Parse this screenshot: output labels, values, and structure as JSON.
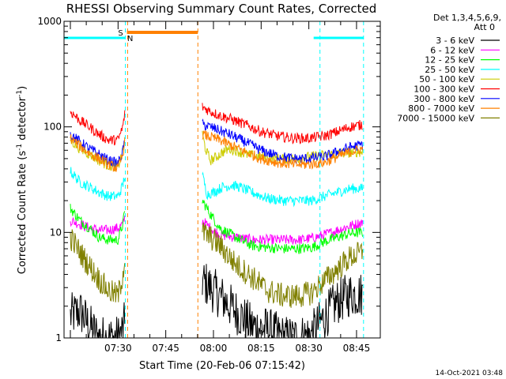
{
  "chart_data": {
    "type": "line",
    "title": "RHESSI Observing Summary Count Rates, Corrected",
    "xlabel": "Start Time (20-Feb-06 07:15:42)",
    "ylabel_main": "Corrected Count Rate (s",
    "ylabel_sup1": "-1",
    "ylabel_mid": " detector",
    "ylabel_sup2": "-1",
    "ylabel_end": ")",
    "yscale": "log",
    "ylim": [
      1,
      1000
    ],
    "xlim_min": [
      0,
      140
    ],
    "x_ticks": [
      {
        "m": 15,
        "label": "07:30"
      },
      {
        "m": 30,
        "label": "07:45"
      },
      {
        "m": 45,
        "label": "08:00"
      },
      {
        "m": 60,
        "label": "08:15"
      },
      {
        "m": 75,
        "label": "08:30"
      },
      {
        "m": 90,
        "label": "08:45"
      }
    ],
    "y_ticks": [
      {
        "v": 1,
        "label": "1"
      },
      {
        "v": 10,
        "label": "10"
      },
      {
        "v": 100,
        "label": "100"
      },
      {
        "v": 1000,
        "label": "1000"
      }
    ],
    "legend_header": [
      "Det 1,3,4,5,6,9,",
      "Att 0"
    ],
    "legend_position": "right",
    "footer_date": "14-Oct-2021 03:48",
    "flags": {
      "saa_label": "S",
      "night_label": "N",
      "saa_bar": {
        "start": 17.3,
        "end": 40.1,
        "color": "#ff8000"
      },
      "night_bars": [
        {
          "start": 0,
          "end": 17.3
        },
        {
          "start": 78.5,
          "end": 92.2
        }
      ],
      "night_color": "#00ffff"
    },
    "vlines": [
      {
        "m": 17.3,
        "color": "#00ffff"
      },
      {
        "m": 18.0,
        "color": "#ff8000"
      },
      {
        "m": 40.1,
        "color": "#ff8000"
      },
      {
        "m": 78.5,
        "color": "#00ffff"
      },
      {
        "m": 92.2,
        "color": "#00ffff"
      }
    ],
    "series": [
      {
        "name": "3 - 6 keV",
        "color": "#000000",
        "seg1": [
          [
            0,
            1.6
          ],
          [
            3,
            1.8
          ],
          [
            6,
            1.3
          ],
          [
            9,
            1.0
          ],
          [
            12,
            1.0
          ],
          [
            15,
            1.0
          ],
          [
            16.5,
            1.2
          ],
          [
            17.2,
            1.4
          ]
        ],
        "seg2": [
          [
            41.5,
            3.5
          ],
          [
            44,
            3.0
          ],
          [
            47,
            2.5
          ],
          [
            52,
            1.8
          ],
          [
            57,
            1.3
          ],
          [
            62,
            1.2
          ],
          [
            67,
            1.0
          ],
          [
            72,
            1.0
          ],
          [
            76,
            1.1
          ],
          [
            80,
            1.6
          ],
          [
            84,
            2.2
          ],
          [
            88,
            2.6
          ],
          [
            92,
            2.6
          ]
        ]
      },
      {
        "name": "6 - 12 keV",
        "color": "#ff00ff",
        "seg1": [
          [
            0,
            13
          ],
          [
            3,
            12
          ],
          [
            6,
            11
          ],
          [
            9,
            10.5
          ],
          [
            12,
            10.5
          ],
          [
            15,
            11
          ],
          [
            16.5,
            12
          ],
          [
            17.2,
            14
          ]
        ],
        "seg2": [
          [
            41.5,
            13
          ],
          [
            44,
            11
          ],
          [
            47,
            9.5
          ],
          [
            52,
            9
          ],
          [
            57,
            8.5
          ],
          [
            62,
            8.5
          ],
          [
            67,
            8.5
          ],
          [
            72,
            8.5
          ],
          [
            76,
            8.8
          ],
          [
            80,
            9.5
          ],
          [
            84,
            10.5
          ],
          [
            88,
            11.5
          ],
          [
            92,
            12.5
          ]
        ]
      },
      {
        "name": "12 - 25 keV",
        "color": "#00ff00",
        "seg1": [
          [
            0,
            17
          ],
          [
            3,
            13
          ],
          [
            6,
            11
          ],
          [
            9,
            9
          ],
          [
            12,
            8.5
          ],
          [
            15,
            8.5
          ],
          [
            16.5,
            12
          ],
          [
            17.2,
            16
          ]
        ],
        "seg2": [
          [
            41.5,
            20
          ],
          [
            44,
            15
          ],
          [
            47,
            11
          ],
          [
            52,
            9
          ],
          [
            57,
            7.5
          ],
          [
            62,
            7.2
          ],
          [
            67,
            7.0
          ],
          [
            72,
            7.0
          ],
          [
            76,
            7.2
          ],
          [
            80,
            8.2
          ],
          [
            84,
            9.0
          ],
          [
            88,
            9.8
          ],
          [
            92,
            10
          ]
        ]
      },
      {
        "name": "25 - 50 keV",
        "color": "#00ffff",
        "seg1": [
          [
            0,
            38
          ],
          [
            3,
            30
          ],
          [
            6,
            27
          ],
          [
            9,
            24
          ],
          [
            12,
            22
          ],
          [
            15,
            22
          ],
          [
            16.5,
            28
          ],
          [
            17.2,
            36
          ]
        ],
        "seg2": [
          [
            41.5,
            35
          ],
          [
            43,
            23
          ],
          [
            45,
            24
          ],
          [
            48,
            27
          ],
          [
            51,
            28
          ],
          [
            53,
            27
          ],
          [
            57,
            24
          ],
          [
            62,
            21
          ],
          [
            67,
            20
          ],
          [
            72,
            20
          ],
          [
            76,
            20
          ],
          [
            80,
            22
          ],
          [
            84,
            24
          ],
          [
            88,
            26
          ],
          [
            92,
            26
          ]
        ]
      },
      {
        "name": "50 - 100 keV",
        "color": "#cccc00",
        "seg1": [
          [
            0,
            75
          ],
          [
            3,
            62
          ],
          [
            6,
            55
          ],
          [
            9,
            48
          ],
          [
            12,
            43
          ],
          [
            15,
            42
          ],
          [
            16.5,
            58
          ],
          [
            17.2,
            80
          ]
        ],
        "seg2": [
          [
            41.5,
            85
          ],
          [
            42.5,
            62
          ],
          [
            44,
            48
          ],
          [
            46,
            52
          ],
          [
            48,
            58
          ],
          [
            50,
            62
          ],
          [
            52,
            60
          ],
          [
            55,
            55
          ],
          [
            60,
            52
          ],
          [
            65,
            50
          ],
          [
            70,
            50
          ],
          [
            75,
            52
          ],
          [
            80,
            54
          ],
          [
            85,
            56
          ],
          [
            90,
            58
          ],
          [
            92,
            58
          ]
        ]
      },
      {
        "name": "100 - 300 keV",
        "color": "#ff0000",
        "seg1": [
          [
            0,
            140
          ],
          [
            3,
            115
          ],
          [
            6,
            100
          ],
          [
            9,
            85
          ],
          [
            12,
            75
          ],
          [
            15,
            75
          ],
          [
            16.5,
            100
          ],
          [
            17.2,
            140
          ]
        ],
        "seg2": [
          [
            41.5,
            155
          ],
          [
            44,
            140
          ],
          [
            47,
            128
          ],
          [
            50,
            120
          ],
          [
            55,
            105
          ],
          [
            60,
            90
          ],
          [
            65,
            82
          ],
          [
            70,
            78
          ],
          [
            75,
            78
          ],
          [
            80,
            82
          ],
          [
            84,
            90
          ],
          [
            88,
            100
          ],
          [
            92,
            105
          ]
        ]
      },
      {
        "name": "300 - 800 keV",
        "color": "#0000ff",
        "seg1": [
          [
            0,
            85
          ],
          [
            3,
            72
          ],
          [
            6,
            62
          ],
          [
            9,
            55
          ],
          [
            12,
            48
          ],
          [
            15,
            45
          ],
          [
            16.5,
            58
          ],
          [
            17.2,
            80
          ]
        ],
        "seg2": [
          [
            41.5,
            105
          ],
          [
            44,
            100
          ],
          [
            47,
            92
          ],
          [
            50,
            85
          ],
          [
            55,
            72
          ],
          [
            60,
            60
          ],
          [
            65,
            53
          ],
          [
            70,
            50
          ],
          [
            75,
            50
          ],
          [
            80,
            52
          ],
          [
            84,
            58
          ],
          [
            88,
            64
          ],
          [
            92,
            68
          ]
        ]
      },
      {
        "name": "800 - 7000 keV",
        "color": "#ff8000",
        "seg1": [
          [
            0,
            78
          ],
          [
            3,
            66
          ],
          [
            6,
            56
          ],
          [
            9,
            50
          ],
          [
            12,
            44
          ],
          [
            15,
            40
          ],
          [
            16.5,
            55
          ],
          [
            17.2,
            75
          ]
        ],
        "seg2": [
          [
            41.5,
            85
          ],
          [
            44,
            80
          ],
          [
            47,
            75
          ],
          [
            50,
            68
          ],
          [
            55,
            58
          ],
          [
            60,
            50
          ],
          [
            65,
            46
          ],
          [
            70,
            44
          ],
          [
            75,
            44
          ],
          [
            80,
            46
          ],
          [
            84,
            52
          ],
          [
            88,
            58
          ],
          [
            92,
            62
          ]
        ]
      },
      {
        "name": "7000 - 15000 keV",
        "color": "#808000",
        "seg1": [
          [
            0,
            9
          ],
          [
            3,
            6.5
          ],
          [
            6,
            4.8
          ],
          [
            9,
            3.6
          ],
          [
            12,
            2.8
          ],
          [
            15,
            2.5
          ],
          [
            16.5,
            4
          ],
          [
            17.2,
            6
          ]
        ],
        "seg2": [
          [
            41.5,
            10
          ],
          [
            44,
            9
          ],
          [
            47,
            7.5
          ],
          [
            52,
            5
          ],
          [
            57,
            3.8
          ],
          [
            62,
            2.8
          ],
          [
            67,
            2.5
          ],
          [
            72,
            2.5
          ],
          [
            76,
            2.7
          ],
          [
            80,
            3.5
          ],
          [
            84,
            4.5
          ],
          [
            88,
            5.8
          ],
          [
            92,
            6.5
          ]
        ]
      }
    ]
  }
}
